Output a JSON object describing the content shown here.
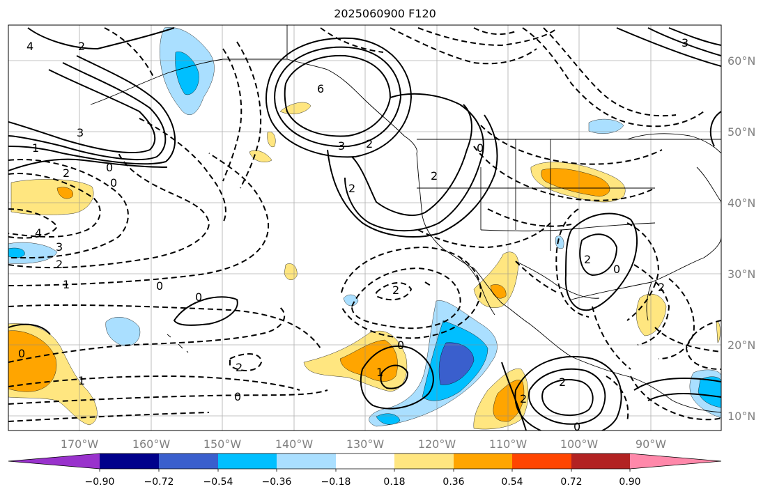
{
  "title": "2025060900 F120",
  "lat_labels": [
    "60°N",
    "50°N",
    "40°N",
    "30°N",
    "20°N",
    "10°N"
  ],
  "lon_labels": [
    "170°W",
    "160°W",
    "150°W",
    "140°W",
    "130°W",
    "120°W",
    "110°W",
    "100°W",
    "90°W"
  ],
  "colorbar": {
    "ticks": [
      "−0.90",
      "−0.72",
      "−0.54",
      "−0.36",
      "−0.18",
      "0.18",
      "0.36",
      "0.54",
      "0.72",
      "0.90"
    ],
    "colors": [
      "#9932cc",
      "#00008b",
      "#3a5fcd",
      "#00bfff",
      "#aadfff",
      "#ffffff",
      "#ffe680",
      "#ffa500",
      "#ff4500",
      "#b22222",
      "#ff88aa"
    ]
  },
  "contour_labels": [
    "4",
    "2",
    "3",
    "1",
    "0",
    "2",
    "0",
    "4",
    "3",
    "2",
    "1",
    "0",
    "6",
    "3",
    "2",
    "2",
    "2",
    "0",
    "0",
    "0",
    "1",
    "2",
    "0",
    "2",
    "0",
    "1",
    "2",
    "0",
    "2",
    "2",
    "0",
    "2",
    "3"
  ]
}
